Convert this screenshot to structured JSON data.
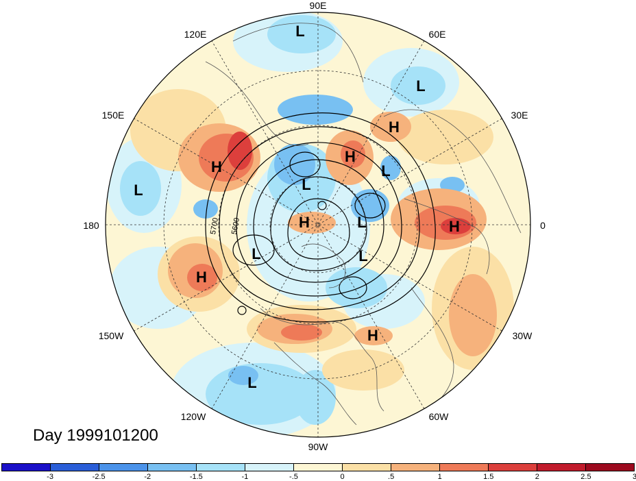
{
  "map": {
    "projection": "polar-stereographic-north",
    "longitude_labels": [
      "90E",
      "60E",
      "30E",
      "0",
      "30W",
      "60W",
      "90W",
      "120W",
      "150W",
      "180",
      "150E",
      "120E"
    ],
    "contour_labels": [
      "5700",
      "5600"
    ],
    "pressure_centers": [
      "L",
      "L",
      "H",
      "H",
      "L",
      "H",
      "L",
      "L",
      "H",
      "H",
      "L",
      "L",
      "L",
      "H",
      "H",
      "L"
    ]
  },
  "day_label": "Day 1999101200",
  "colorbar": {
    "colors": [
      "#1a10c8",
      "#2a5ed8",
      "#4b93ea",
      "#78c0f2",
      "#a6e2f8",
      "#d7f3fa",
      "#fdf6d4",
      "#fbe0a6",
      "#f6b27c",
      "#ee7a58",
      "#dc3f3c",
      "#c11c2c",
      "#9c0a1e"
    ],
    "tick_labels": [
      "-3",
      "-2.5",
      "-2",
      "-1.5",
      "-1",
      "-.5",
      "0",
      ".5",
      "1",
      "1.5",
      "2",
      "2.5",
      "3"
    ]
  }
}
